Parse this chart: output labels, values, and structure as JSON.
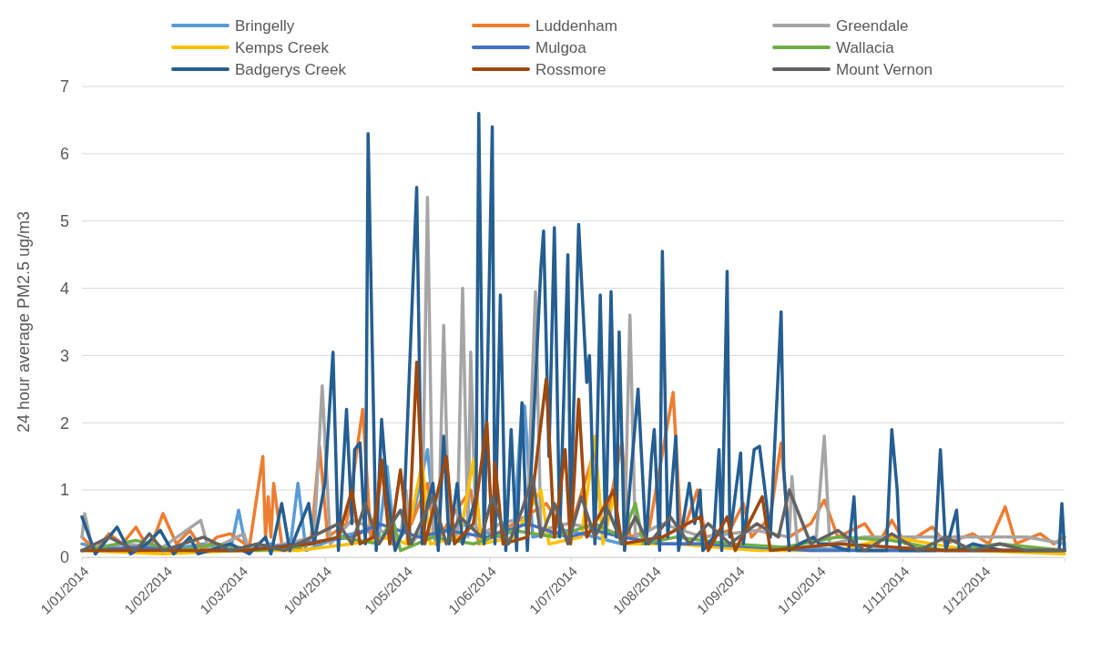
{
  "chart_data": {
    "type": "line",
    "ylabel": "24 hour average PM2.5 ug/m3",
    "xlim": [
      "2014-01-01",
      "2014-12-31"
    ],
    "ylim": [
      0,
      7
    ],
    "yticks": [
      0,
      1,
      2,
      3,
      4,
      5,
      6,
      7
    ],
    "xticks": [
      {
        "value": "2014-01-01",
        "label": "1/01/2014"
      },
      {
        "value": "2014-02-01",
        "label": "1/02/2014"
      },
      {
        "value": "2014-03-01",
        "label": "1/03/2014"
      },
      {
        "value": "2014-04-01",
        "label": "1/04/2014"
      },
      {
        "value": "2014-05-01",
        "label": "1/05/2014"
      },
      {
        "value": "2014-06-01",
        "label": "1/06/2014"
      },
      {
        "value": "2014-07-01",
        "label": "1/07/2014"
      },
      {
        "value": "2014-08-01",
        "label": "1/08/2014"
      },
      {
        "value": "2014-09-01",
        "label": "1/09/2014"
      },
      {
        "value": "2014-10-01",
        "label": "1/10/2014"
      },
      {
        "value": "2014-11-01",
        "label": "1/11/2014"
      },
      {
        "value": "2014-12-01",
        "label": "1/12/2014"
      }
    ],
    "grid": "y",
    "legend": "top",
    "marker": "none",
    "line_style": "solid",
    "series": [
      {
        "name": "Bringelly",
        "color": "#5b9bd5",
        "x": [
          "2014-01-01",
          "2014-01-11",
          "2014-01-21",
          "2014-01-31",
          "2014-02-15",
          "2014-02-25",
          "2014-02-28",
          "2014-03-03",
          "2014-03-12",
          "2014-03-19",
          "2014-03-22",
          "2014-03-25",
          "2014-04-06",
          "2014-04-16",
          "2014-04-21",
          "2014-04-24",
          "2014-04-27",
          "2014-05-03",
          "2014-05-09",
          "2014-05-12",
          "2014-05-21",
          "2014-06-05",
          "2014-06-10",
          "2014-06-13",
          "2014-06-14",
          "2014-06-17",
          "2014-06-30",
          "2014-07-20",
          "2014-08-19",
          "2014-09-18",
          "2014-10-18",
          "2014-11-17",
          "2014-12-31"
        ],
        "values": [
          0.2,
          0.1,
          0.15,
          0.1,
          0.2,
          0.1,
          0.7,
          0.1,
          0.2,
          0.1,
          1.1,
          0.1,
          0.3,
          0.4,
          0.3,
          1.35,
          0.2,
          0.5,
          1.6,
          0.3,
          0.5,
          0.3,
          0.4,
          2.25,
          2.25,
          0.3,
          0.4,
          0.2,
          0.2,
          0.15,
          0.1,
          0.1,
          0.1
        ]
      },
      {
        "name": "Luddenham",
        "color": "#ed7d31",
        "x": [
          "2014-01-01",
          "2014-01-06",
          "2014-01-11",
          "2014-01-16",
          "2014-01-21",
          "2014-01-26",
          "2014-01-31",
          "2014-02-05",
          "2014-02-10",
          "2014-02-15",
          "2014-02-20",
          "2014-02-25",
          "2014-03-04",
          "2014-03-09",
          "2014-03-10",
          "2014-03-11",
          "2014-03-12",
          "2014-03-13",
          "2014-03-16",
          "2014-03-22",
          "2014-03-27",
          "2014-03-30",
          "2014-04-02",
          "2014-04-09",
          "2014-04-15",
          "2014-04-18",
          "2014-04-23",
          "2014-04-26",
          "2014-05-03",
          "2014-05-09",
          "2014-05-12",
          "2014-05-18",
          "2014-05-25",
          "2014-05-28",
          "2014-06-10",
          "2014-06-22",
          "2014-06-30",
          "2014-07-10",
          "2014-07-13",
          "2014-07-20",
          "2014-07-23",
          "2014-07-30",
          "2014-08-08",
          "2014-08-11",
          "2014-08-17",
          "2014-08-20",
          "2014-08-29",
          "2014-09-03",
          "2014-09-06",
          "2014-09-13",
          "2014-09-17",
          "2014-09-20",
          "2014-09-28",
          "2014-10-03",
          "2014-10-08",
          "2014-10-18",
          "2014-10-23",
          "2014-10-28",
          "2014-11-02",
          "2014-11-12",
          "2014-11-17",
          "2014-11-27",
          "2014-12-03",
          "2014-12-09",
          "2014-12-13",
          "2014-12-22",
          "2014-12-27",
          "2014-12-31"
        ],
        "values": [
          0.3,
          0.1,
          0.35,
          0.2,
          0.45,
          0.1,
          0.65,
          0.2,
          0.4,
          0.1,
          0.3,
          0.35,
          0.15,
          1.5,
          0.3,
          0.9,
          0.3,
          1.1,
          0.2,
          0.1,
          0.3,
          1.65,
          0.3,
          0.5,
          2.2,
          0.3,
          1.4,
          0.2,
          0.5,
          1.1,
          0.2,
          0.6,
          1.0,
          0.2,
          0.5,
          0.8,
          0.3,
          1.6,
          0.3,
          1.7,
          0.3,
          0.4,
          2.45,
          0.3,
          1.0,
          0.3,
          0.4,
          0.8,
          0.3,
          0.6,
          1.7,
          0.3,
          0.5,
          0.85,
          0.3,
          0.5,
          0.2,
          0.55,
          0.2,
          0.45,
          0.2,
          0.35,
          0.2,
          0.75,
          0.2,
          0.35,
          0.2,
          0.3
        ]
      },
      {
        "name": "Greendale",
        "color": "#a5a5a5",
        "x": [
          "2014-01-01",
          "2014-01-02",
          "2014-01-05",
          "2014-01-16",
          "2014-01-31",
          "2014-02-14",
          "2014-02-17",
          "2014-03-02",
          "2014-03-04",
          "2014-03-17",
          "2014-03-28",
          "2014-03-31",
          "2014-04-03",
          "2014-04-11",
          "2014-04-21",
          "2014-04-29",
          "2014-05-01",
          "2014-05-03",
          "2014-05-07",
          "2014-05-09",
          "2014-05-11",
          "2014-05-13",
          "2014-05-15",
          "2014-05-17",
          "2014-05-20",
          "2014-05-22",
          "2014-05-24",
          "2014-05-25",
          "2014-05-27",
          "2014-06-05",
          "2014-06-15",
          "2014-06-18",
          "2014-06-20",
          "2014-06-30",
          "2014-07-15",
          "2014-07-21",
          "2014-07-23",
          "2014-07-25",
          "2014-08-04",
          "2014-08-19",
          "2014-09-08",
          "2014-09-20",
          "2014-09-21",
          "2014-09-23",
          "2014-09-30",
          "2014-10-03",
          "2014-10-05",
          "2014-10-18",
          "2014-11-07",
          "2014-11-27",
          "2014-12-17",
          "2014-12-31"
        ],
        "values": [
          0.3,
          0.65,
          0.1,
          0.2,
          0.15,
          0.55,
          0.1,
          0.35,
          0.1,
          0.2,
          0.3,
          2.55,
          0.2,
          0.55,
          0.4,
          0.3,
          1.0,
          0.2,
          0.4,
          5.35,
          0.3,
          0.2,
          3.45,
          0.3,
          0.3,
          4.0,
          0.3,
          3.05,
          0.3,
          0.5,
          0.6,
          3.95,
          0.4,
          0.5,
          0.4,
          0.3,
          3.6,
          0.3,
          0.5,
          0.3,
          0.4,
          0.3,
          1.2,
          0.2,
          0.3,
          1.8,
          0.2,
          0.3,
          0.3,
          0.3,
          0.3,
          0.2
        ]
      },
      {
        "name": "Kemps Creek",
        "color": "#ffc000",
        "x": [
          "2014-01-01",
          "2014-01-31",
          "2014-03-02",
          "2014-03-22",
          "2014-04-11",
          "2014-04-26",
          "2014-05-01",
          "2014-05-07",
          "2014-05-10",
          "2014-05-21",
          "2014-05-26",
          "2014-05-29",
          "2014-06-10",
          "2014-06-20",
          "2014-06-23",
          "2014-07-05",
          "2014-07-10",
          "2014-07-13",
          "2014-07-17",
          "2014-07-20",
          "2014-08-09",
          "2014-09-08",
          "2014-10-08",
          "2014-10-28",
          "2014-11-27",
          "2014-12-31"
        ],
        "values": [
          0.1,
          0.05,
          0.1,
          0.1,
          0.2,
          0.3,
          0.2,
          1.4,
          0.2,
          0.3,
          1.45,
          0.2,
          0.3,
          1.0,
          0.2,
          0.3,
          1.8,
          0.2,
          0.9,
          0.2,
          0.2,
          0.1,
          0.1,
          0.3,
          0.1,
          0.05
        ]
      },
      {
        "name": "Mulgoa",
        "color": "#4472c4",
        "x": [
          "2014-01-01",
          "2014-01-21",
          "2014-02-10",
          "2014-03-02",
          "2014-03-22",
          "2014-04-11",
          "2014-04-21",
          "2014-05-06",
          "2014-05-16",
          "2014-05-31",
          "2014-06-15",
          "2014-06-30",
          "2014-07-10",
          "2014-07-20",
          "2014-08-04",
          "2014-08-19",
          "2014-09-08",
          "2014-09-28",
          "2014-10-18",
          "2014-11-07",
          "2014-11-27",
          "2014-12-31"
        ],
        "values": [
          0.1,
          0.15,
          0.1,
          0.1,
          0.2,
          0.3,
          0.5,
          0.3,
          0.4,
          0.3,
          0.5,
          0.3,
          0.4,
          0.3,
          0.2,
          0.2,
          0.15,
          0.1,
          0.1,
          0.1,
          0.1,
          0.1
        ]
      },
      {
        "name": "Wallacia",
        "color": "#70ad47",
        "x": [
          "2014-01-01",
          "2014-01-21",
          "2014-02-05",
          "2014-02-20",
          "2014-03-07",
          "2014-03-22",
          "2014-04-06",
          "2014-04-21",
          "2014-04-26",
          "2014-04-29",
          "2014-05-11",
          "2014-05-26",
          "2014-06-10",
          "2014-06-25",
          "2014-07-10",
          "2014-07-20",
          "2014-07-25",
          "2014-07-28",
          "2014-08-09",
          "2014-08-29",
          "2014-09-18",
          "2014-10-08",
          "2014-10-28",
          "2014-11-17",
          "2014-12-07",
          "2014-12-31"
        ],
        "values": [
          0.1,
          0.25,
          0.1,
          0.2,
          0.1,
          0.15,
          0.3,
          0.2,
          0.6,
          0.1,
          0.3,
          0.2,
          0.4,
          0.3,
          0.5,
          0.3,
          0.8,
          0.2,
          0.3,
          0.2,
          0.15,
          0.3,
          0.25,
          0.1,
          0.2,
          0.1
        ]
      },
      {
        "name": "Badgerys Creek",
        "color": "#255e91",
        "x": [
          "2014-01-01",
          "2014-01-06",
          "2014-01-14",
          "2014-01-19",
          "2014-01-25",
          "2014-01-30",
          "2014-02-04",
          "2014-02-10",
          "2014-02-13",
          "2014-02-25",
          "2014-03-04",
          "2014-03-10",
          "2014-03-12",
          "2014-03-16",
          "2014-03-19",
          "2014-03-26",
          "2014-03-28",
          "2014-04-01",
          "2014-04-04",
          "2014-04-06",
          "2014-04-09",
          "2014-04-11",
          "2014-04-12",
          "2014-04-14",
          "2014-04-16",
          "2014-04-17",
          "2014-04-20",
          "2014-04-22",
          "2014-04-24",
          "2014-04-27",
          "2014-04-30",
          "2014-05-05",
          "2014-05-07",
          "2014-05-09",
          "2014-05-11",
          "2014-05-13",
          "2014-05-15",
          "2014-05-17",
          "2014-05-20",
          "2014-05-22",
          "2014-05-27",
          "2014-05-28",
          "2014-05-30",
          "2014-06-02",
          "2014-06-03",
          "2014-06-05",
          "2014-06-07",
          "2014-06-09",
          "2014-06-11",
          "2014-06-13",
          "2014-06-15",
          "2014-06-20",
          "2014-06-21",
          "2014-06-23",
          "2014-06-25",
          "2014-06-27",
          "2014-06-30",
          "2014-07-01",
          "2014-07-04",
          "2014-07-07",
          "2014-07-08",
          "2014-07-10",
          "2014-07-12",
          "2014-07-14",
          "2014-07-16",
          "2014-07-18",
          "2014-07-19",
          "2014-07-21",
          "2014-07-26",
          "2014-07-29",
          "2014-07-31",
          "2014-08-01",
          "2014-08-03",
          "2014-08-04",
          "2014-08-06",
          "2014-08-09",
          "2014-08-10",
          "2014-08-14",
          "2014-08-16",
          "2014-08-18",
          "2014-08-19",
          "2014-08-23",
          "2014-08-25",
          "2014-08-26",
          "2014-08-28",
          "2014-08-29",
          "2014-09-02",
          "2014-09-03",
          "2014-09-07",
          "2014-09-09",
          "2014-09-11",
          "2014-09-13",
          "2014-09-17",
          "2014-09-18",
          "2014-09-20",
          "2014-09-24",
          "2014-09-29",
          "2014-10-01",
          "2014-10-04",
          "2014-10-12",
          "2014-10-14",
          "2014-10-15",
          "2014-10-26",
          "2014-10-28",
          "2014-10-30",
          "2014-10-31",
          "2014-11-13",
          "2014-11-15",
          "2014-11-17",
          "2014-11-21",
          "2014-11-22",
          "2014-11-27",
          "2014-12-08",
          "2014-12-27",
          "2014-12-29",
          "2014-12-30",
          "2014-12-31"
        ],
        "values": [
          0.6,
          0.05,
          0.45,
          0.05,
          0.2,
          0.4,
          0.05,
          0.3,
          0.05,
          0.2,
          0.05,
          0.3,
          0.05,
          0.8,
          0.1,
          0.8,
          0.2,
          1.1,
          3.05,
          0.1,
          2.2,
          0.5,
          1.6,
          1.7,
          0.2,
          6.3,
          0.1,
          2.05,
          1.0,
          0.1,
          0.4,
          5.5,
          0.2,
          0.8,
          1.1,
          0.1,
          1.8,
          0.2,
          1.1,
          0.2,
          0.9,
          6.6,
          0.2,
          6.4,
          0.2,
          3.9,
          0.1,
          1.9,
          0.1,
          2.3,
          0.1,
          4.3,
          4.85,
          1.5,
          4.9,
          0.3,
          4.5,
          0.5,
          4.95,
          2.6,
          3.0,
          0.2,
          3.9,
          0.3,
          3.95,
          0.3,
          3.35,
          0.1,
          2.5,
          0.2,
          1.5,
          1.9,
          0.1,
          4.55,
          0.3,
          1.8,
          0.1,
          1.1,
          0.5,
          1.0,
          0.1,
          0.3,
          1.6,
          0.1,
          4.25,
          0.3,
          1.55,
          0.2,
          1.6,
          1.65,
          1.0,
          0.3,
          3.65,
          1.3,
          0.1,
          0.2,
          0.3,
          0.2,
          0.2,
          0.1,
          0.9,
          0.1,
          0.1,
          1.9,
          1.0,
          0.1,
          0.1,
          1.6,
          0.1,
          0.7,
          0.1,
          0.2,
          0.1,
          0.1,
          0.1,
          0.8,
          0.1
        ]
      },
      {
        "name": "Rossmore",
        "color": "#9e480e",
        "x": [
          "2014-01-01",
          "2014-01-31",
          "2014-03-02",
          "2014-03-27",
          "2014-04-06",
          "2014-04-11",
          "2014-04-14",
          "2014-04-19",
          "2014-04-22",
          "2014-04-25",
          "2014-04-29",
          "2014-05-02",
          "2014-05-05",
          "2014-05-08",
          "2014-05-16",
          "2014-05-19",
          "2014-05-26",
          "2014-05-31",
          "2014-06-02",
          "2014-06-03",
          "2014-06-06",
          "2014-06-15",
          "2014-06-22",
          "2014-06-25",
          "2014-06-29",
          "2014-07-01",
          "2014-07-04",
          "2014-07-07",
          "2014-07-17",
          "2014-07-20",
          "2014-08-04",
          "2014-08-18",
          "2014-08-21",
          "2014-08-28",
          "2014-08-31",
          "2014-09-10",
          "2014-09-13",
          "2014-10-08",
          "2014-11-17",
          "2014-12-31"
        ],
        "values": [
          0.1,
          0.1,
          0.1,
          0.2,
          0.3,
          1.0,
          0.2,
          0.3,
          1.45,
          0.2,
          1.3,
          0.2,
          2.9,
          0.2,
          1.5,
          0.2,
          0.5,
          2.0,
          0.3,
          1.4,
          0.2,
          0.3,
          2.65,
          0.3,
          1.6,
          0.2,
          2.35,
          0.3,
          1.0,
          0.2,
          0.3,
          0.6,
          0.1,
          0.6,
          0.1,
          0.9,
          0.1,
          0.2,
          0.1,
          0.1
        ]
      },
      {
        "name": "Mount Vernon",
        "color": "#636363",
        "x": [
          "2014-01-01",
          "2014-01-11",
          "2014-01-21",
          "2014-01-26",
          "2014-01-31",
          "2014-02-15",
          "2014-02-25",
          "2014-03-07",
          "2014-03-17",
          "2014-03-27",
          "2014-04-06",
          "2014-04-11",
          "2014-04-16",
          "2014-04-21",
          "2014-04-29",
          "2014-05-03",
          "2014-05-11",
          "2014-05-16",
          "2014-05-21",
          "2014-05-29",
          "2014-06-02",
          "2014-06-08",
          "2014-06-13",
          "2014-06-17",
          "2014-06-20",
          "2014-06-25",
          "2014-06-30",
          "2014-07-05",
          "2014-07-10",
          "2014-07-15",
          "2014-07-20",
          "2014-07-25",
          "2014-07-30",
          "2014-08-07",
          "2014-08-14",
          "2014-08-21",
          "2014-08-29",
          "2014-09-08",
          "2014-09-16",
          "2014-09-20",
          "2014-09-28",
          "2014-10-08",
          "2014-10-18",
          "2014-10-28",
          "2014-11-07",
          "2014-11-17",
          "2014-11-27",
          "2014-12-07",
          "2014-12-17",
          "2014-12-31"
        ],
        "values": [
          0.1,
          0.3,
          0.1,
          0.35,
          0.1,
          0.3,
          0.1,
          0.2,
          0.1,
          0.3,
          0.5,
          0.2,
          0.8,
          0.2,
          0.7,
          0.2,
          0.9,
          0.2,
          0.6,
          0.3,
          0.9,
          0.2,
          0.7,
          1.2,
          0.3,
          0.8,
          0.2,
          0.9,
          0.3,
          0.7,
          0.2,
          0.6,
          0.2,
          0.6,
          0.2,
          0.5,
          0.2,
          0.5,
          0.3,
          1.0,
          0.2,
          0.4,
          0.1,
          0.35,
          0.1,
          0.3,
          0.1,
          0.2,
          0.1,
          0.1
        ]
      }
    ]
  }
}
